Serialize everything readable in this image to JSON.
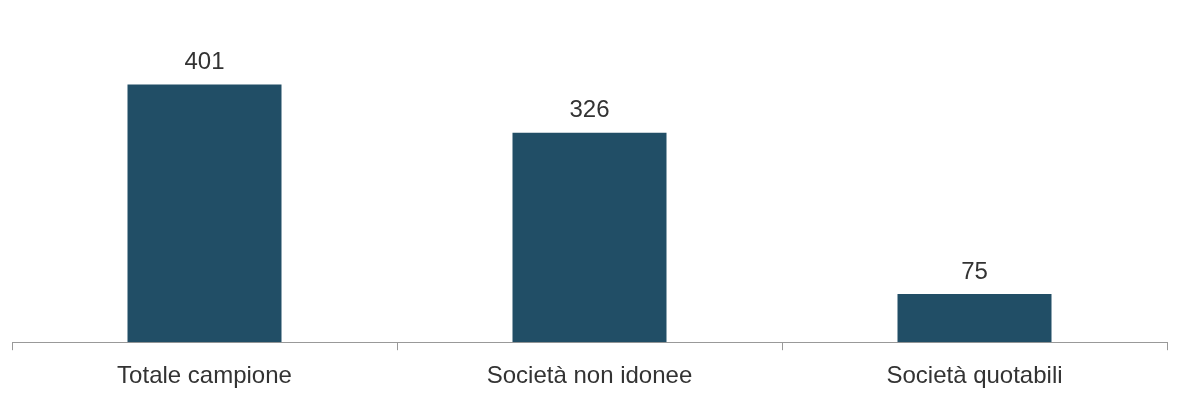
{
  "chart_data": {
    "type": "bar",
    "categories": [
      "Totale campione",
      "Società non idonee",
      "Società quotabili"
    ],
    "values": [
      401,
      326,
      75
    ],
    "color": "#214e66",
    "data_labels": true,
    "grid": false,
    "legend": false
  }
}
